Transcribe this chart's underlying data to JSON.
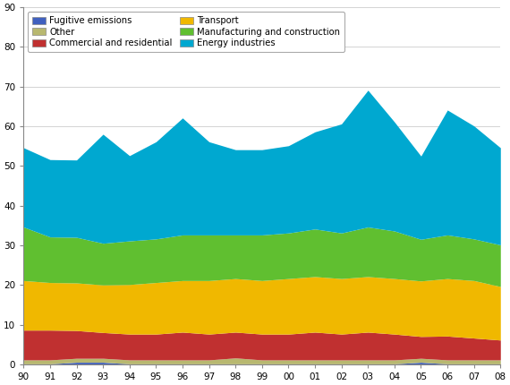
{
  "years": [
    1990,
    1991,
    1992,
    1993,
    1994,
    1995,
    1996,
    1997,
    1998,
    1999,
    2000,
    2001,
    2002,
    2003,
    2004,
    2005,
    2006,
    2007,
    2008
  ],
  "series": {
    "Fugitive emissions": [
      0.1,
      0.1,
      0.5,
      0.5,
      0.1,
      0.1,
      0.1,
      0.1,
      0.1,
      0.1,
      0.1,
      0.1,
      0.1,
      0.1,
      0.1,
      0.5,
      0.1,
      0.1,
      0.1
    ],
    "Other": [
      1.0,
      1.0,
      1.0,
      1.0,
      1.0,
      1.0,
      1.0,
      1.0,
      1.5,
      1.0,
      1.0,
      1.0,
      1.0,
      1.0,
      1.0,
      1.0,
      1.0,
      1.0,
      1.0
    ],
    "Commercial and residential": [
      7.5,
      7.5,
      7.0,
      6.5,
      6.5,
      6.5,
      7.0,
      6.5,
      6.5,
      6.5,
      6.5,
      7.0,
      6.5,
      7.0,
      6.5,
      5.5,
      6.0,
      5.5,
      5.0
    ],
    "Transport": [
      12.5,
      12.0,
      12.0,
      12.0,
      12.5,
      13.0,
      13.0,
      13.5,
      13.5,
      13.5,
      14.0,
      14.0,
      14.0,
      14.0,
      14.0,
      14.0,
      14.5,
      14.5,
      13.5
    ],
    "Manufacturing and construction": [
      13.5,
      11.5,
      11.5,
      10.5,
      11.0,
      11.0,
      11.5,
      11.5,
      11.0,
      11.5,
      11.5,
      12.0,
      11.5,
      12.5,
      12.0,
      10.5,
      11.0,
      10.5,
      10.5
    ],
    "Energy industries": [
      20.0,
      19.5,
      19.5,
      27.5,
      21.5,
      24.5,
      29.5,
      23.5,
      21.5,
      21.5,
      22.0,
      24.5,
      27.5,
      34.5,
      27.5,
      21.0,
      31.5,
      28.5,
      24.5
    ]
  },
  "colors": {
    "Fugitive emissions": "#4060bf",
    "Other": "#b8b870",
    "Commercial and residential": "#c03030",
    "Transport": "#f0b800",
    "Manufacturing and construction": "#60bf30",
    "Energy industries": "#00a8d0"
  },
  "stack_order": [
    "Fugitive emissions",
    "Other",
    "Commercial and residential",
    "Transport",
    "Manufacturing and construction",
    "Energy industries"
  ],
  "legend_col1": [
    "Fugitive emissions",
    "Commercial and residential",
    "Manufacturing and construction"
  ],
  "legend_col2": [
    "Other",
    "Transport",
    "Energy industries"
  ],
  "ylim": [
    0,
    90
  ],
  "yticks": [
    0,
    10,
    20,
    30,
    40,
    50,
    60,
    70,
    80,
    90
  ],
  "background_color": "#ffffff"
}
